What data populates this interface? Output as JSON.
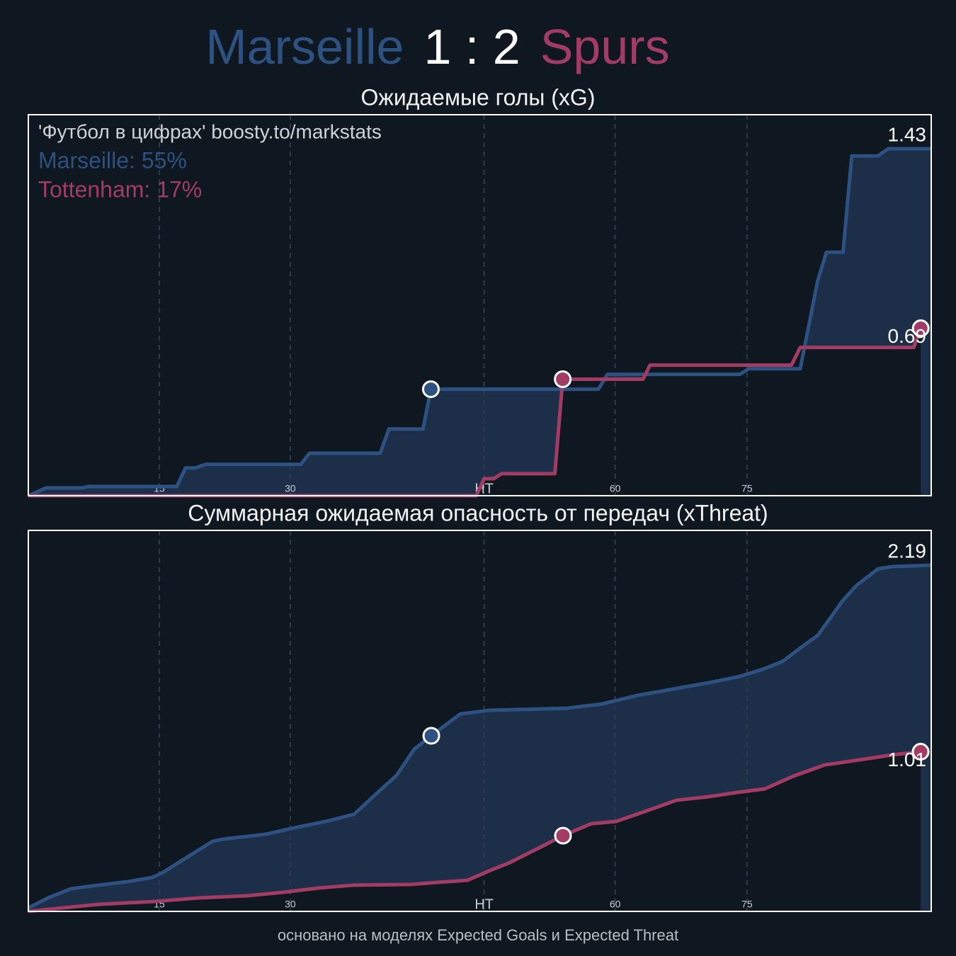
{
  "header": {
    "home": "Marseille",
    "score": "1 : 2",
    "away": "Spurs",
    "home_color": "#2d5180",
    "away_color": "#a33c64"
  },
  "chart_data": [
    {
      "type": "line",
      "title": "Ожидаемые голы (xG)",
      "annotations": [
        {
          "text": "'Футбол в цифрах' boosty.to/markstats",
          "color": "#cfd3d8"
        },
        {
          "text": "Marseille: 55%",
          "color": "#2d5180"
        },
        {
          "text": "Tottenham: 17%",
          "color": "#a33c64"
        }
      ],
      "xlim": [
        0,
        103.4
      ],
      "ylim": [
        0,
        1.57
      ],
      "xticks": [
        15,
        30,
        {
          "value": 52.2,
          "label": "HT"
        },
        {
          "value": 67.2,
          "label": "60"
        },
        {
          "value": 82.3,
          "label": "75"
        }
      ],
      "grid": true,
      "fill_between": true,
      "series": [
        {
          "color": "#2d5180",
          "x": [
            0,
            2.0,
            6.1,
            6.9,
            17.0,
            18.0,
            19.1,
            20.3,
            31.2,
            32.2,
            40.3,
            41.3,
            45.2,
            46.1,
            65.3,
            66.3,
            81.5,
            82.5,
            88.4,
            90.4,
            91.4,
            93.3,
            94.3,
            97.3,
            98.5,
            103.4
          ],
          "values": [
            0,
            0.032,
            0.032,
            0.038,
            0.038,
            0.114,
            0.114,
            0.129,
            0.129,
            0.175,
            0.175,
            0.275,
            0.275,
            0.439,
            0.439,
            0.5,
            0.5,
            0.523,
            0.523,
            0.886,
            1.003,
            1.003,
            1.4,
            1.4,
            1.43,
            1.43
          ],
          "goals": {
            "x": [
              46.1
            ],
            "y": [
              0.439
            ]
          }
        },
        {
          "color": "#a33c64",
          "x": [
            0,
            51.3,
            52.2,
            53.3,
            54.2,
            60.3,
            61.2,
            70.4,
            71.2,
            87.4,
            88.4,
            101.4,
            102.2
          ],
          "values": [
            0,
            0,
            0.07,
            0.07,
            0.091,
            0.091,
            0.48,
            0.48,
            0.538,
            0.538,
            0.611,
            0.611,
            0.69
          ],
          "goals": {
            "x": [
              61.2,
              102.2
            ],
            "y": [
              0.48,
              0.69
            ]
          }
        }
      ]
    },
    {
      "type": "line",
      "title": "Суммарная ожидаемая опасность от передач (xThreat)",
      "xlim": [
        0,
        103.4
      ],
      "ylim": [
        0,
        2.41
      ],
      "xticks": [
        15,
        30,
        {
          "value": 52.2,
          "label": "HT"
        },
        {
          "value": 67.2,
          "label": "60"
        },
        {
          "value": 82.3,
          "label": "75"
        }
      ],
      "grid": true,
      "fill_between": true,
      "series": [
        {
          "color": "#2d5180",
          "x": [
            0,
            2.43,
            4.87,
            7.3,
            11.35,
            14.19,
            15.41,
            17.84,
            21.09,
            22.3,
            27.17,
            30.82,
            34.06,
            37.31,
            39.74,
            42.17,
            44.2,
            46.15,
            49.47,
            52.72,
            61.64,
            65.69,
            69.75,
            73.8,
            77.86,
            81.51,
            84.35,
            86.37,
            88.4,
            90.43,
            93.27,
            94.89,
            97.32,
            98.95,
            103.4
          ],
          "values": [
            0.022,
            0.09,
            0.143,
            0.161,
            0.188,
            0.215,
            0.246,
            0.331,
            0.443,
            0.457,
            0.488,
            0.533,
            0.569,
            0.614,
            0.739,
            0.86,
            1.026,
            1.111,
            1.249,
            1.272,
            1.285,
            1.312,
            1.366,
            1.406,
            1.446,
            1.487,
            1.536,
            1.581,
            1.666,
            1.747,
            1.966,
            2.064,
            2.167,
            2.181,
            2.19
          ],
          "goals": {
            "x": [
              46.15
            ],
            "y": [
              1.111
            ]
          }
        },
        {
          "color": "#a33c64",
          "x": [
            0,
            4.87,
            8.11,
            14.6,
            19.46,
            25.14,
            29.2,
            33.25,
            37.31,
            43.8,
            47.04,
            50.28,
            52.72,
            55.15,
            58.39,
            61.23,
            64.48,
            67.32,
            70.56,
            74.21,
            77.86,
            81.1,
            84.35,
            87.59,
            91.24,
            92.46,
            95.7,
            98.95,
            102.19
          ],
          "values": [
            0,
            0.027,
            0.045,
            0.063,
            0.085,
            0.099,
            0.121,
            0.148,
            0.166,
            0.17,
            0.184,
            0.197,
            0.255,
            0.309,
            0.399,
            0.479,
            0.555,
            0.569,
            0.631,
            0.703,
            0.725,
            0.752,
            0.775,
            0.855,
            0.927,
            0.936,
            0.963,
            0.99,
            1.01
          ],
          "goals": {
            "x": [
              61.23,
              102.19
            ],
            "y": [
              0.479,
              1.01
            ]
          }
        }
      ]
    }
  ],
  "footer": "основано на моделях Expected Goals и Expected Threat"
}
